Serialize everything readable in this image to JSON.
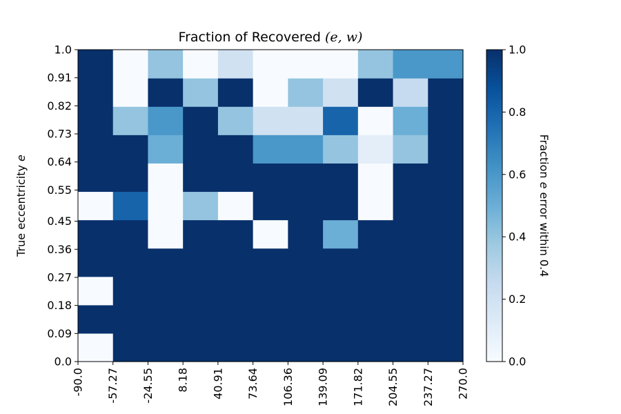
{
  "chart_data": {
    "type": "heatmap",
    "title_prefix": "Fraction of Recovered ",
    "title_math": "(e, w)",
    "ylabel_prefix": "True eccentricity ",
    "ylabel_math": "e",
    "colorbar_label_parts": [
      "Fraction ",
      "e",
      " error within 0.4"
    ],
    "x_edges": [
      "-90.0",
      "-57.27",
      "-24.55",
      "8.18",
      "40.91",
      "73.64",
      "106.36",
      "139.09",
      "171.82",
      "204.55",
      "237.27",
      "270.0"
    ],
    "y_edges": [
      "0.0",
      "0.09",
      "0.18",
      "0.27",
      "0.36",
      "0.45",
      "0.55",
      "0.64",
      "0.73",
      "0.82",
      "0.91",
      "1.0"
    ],
    "y_range": [
      0.0,
      1.0
    ],
    "colorbar": {
      "colormap": "Blues",
      "range": [
        0.0,
        1.0
      ],
      "ticks": [
        "0.0",
        "0.2",
        "0.4",
        "0.6",
        "0.8",
        "1.0"
      ]
    },
    "values": [
      [
        0.0,
        1.0,
        1.0,
        1.0,
        1.0,
        1.0,
        1.0,
        1.0,
        1.0,
        1.0,
        1.0
      ],
      [
        1.0,
        1.0,
        1.0,
        1.0,
        1.0,
        1.0,
        1.0,
        1.0,
        1.0,
        1.0,
        1.0
      ],
      [
        0.0,
        1.0,
        1.0,
        1.0,
        1.0,
        1.0,
        1.0,
        1.0,
        1.0,
        1.0,
        1.0
      ],
      [
        1.0,
        1.0,
        1.0,
        1.0,
        1.0,
        1.0,
        1.0,
        1.0,
        1.0,
        1.0,
        1.0
      ],
      [
        1.0,
        1.0,
        0.0,
        1.0,
        1.0,
        0.0,
        1.0,
        0.5,
        1.0,
        1.0,
        1.0
      ],
      [
        0.0,
        0.8,
        0.0,
        0.4,
        0.0,
        1.0,
        1.0,
        1.0,
        0.0,
        1.0,
        1.0
      ],
      [
        1.0,
        1.0,
        0.0,
        1.0,
        1.0,
        1.0,
        1.0,
        1.0,
        0.0,
        1.0,
        1.0
      ],
      [
        1.0,
        1.0,
        0.5,
        1.0,
        1.0,
        0.6,
        0.6,
        0.4,
        0.1,
        0.4,
        1.0
      ],
      [
        1.0,
        0.4,
        0.6,
        1.0,
        0.4,
        0.2,
        0.2,
        0.8,
        0.0,
        0.5,
        1.0
      ],
      [
        1.0,
        0.0,
        1.0,
        0.4,
        1.0,
        0.0,
        0.4,
        0.2,
        1.0,
        0.25,
        1.0
      ],
      [
        1.0,
        0.0,
        0.4,
        0.0,
        0.2,
        0.0,
        0.0,
        0.0,
        0.4,
        0.6,
        0.6
      ]
    ]
  }
}
